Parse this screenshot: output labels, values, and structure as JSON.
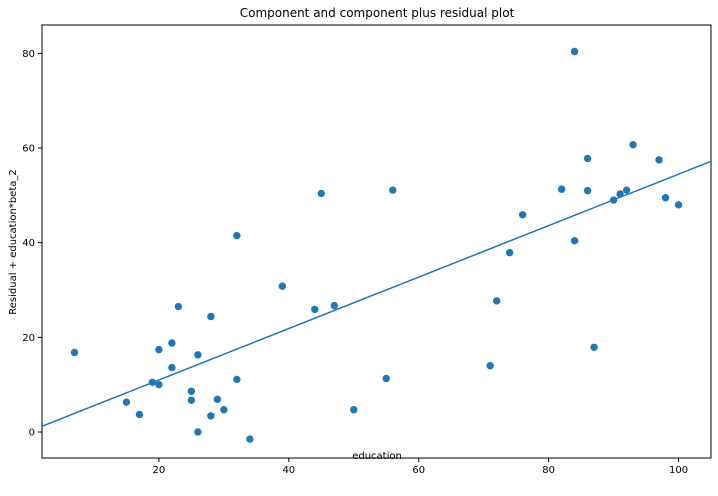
{
  "chart_data": {
    "type": "scatter",
    "title": "Component and component plus residual plot",
    "xlabel": "education",
    "ylabel": "Residual + education*beta_2",
    "xlim": [
      2,
      105
    ],
    "ylim": [
      -5.5,
      86
    ],
    "xticks": [
      20,
      40,
      60,
      80,
      100
    ],
    "yticks": [
      0,
      20,
      40,
      60,
      80
    ],
    "grid": false,
    "colors": {
      "points": "#1f77b4",
      "line": "#1f77b4"
    },
    "points": [
      {
        "x": 7,
        "y": 16.8
      },
      {
        "x": 15,
        "y": 6.3
      },
      {
        "x": 17,
        "y": 3.7
      },
      {
        "x": 19,
        "y": 10.5
      },
      {
        "x": 20,
        "y": 17.4
      },
      {
        "x": 20,
        "y": 10
      },
      {
        "x": 22,
        "y": 18.8
      },
      {
        "x": 22,
        "y": 13.6
      },
      {
        "x": 23,
        "y": 26.5
      },
      {
        "x": 25,
        "y": 8.6
      },
      {
        "x": 25,
        "y": 6.7
      },
      {
        "x": 26,
        "y": 16.3
      },
      {
        "x": 26,
        "y": 0
      },
      {
        "x": 28,
        "y": 24.4
      },
      {
        "x": 28,
        "y": 3.4
      },
      {
        "x": 29,
        "y": 6.9
      },
      {
        "x": 30,
        "y": 4.7
      },
      {
        "x": 32,
        "y": 41.5
      },
      {
        "x": 32,
        "y": 11.1
      },
      {
        "x": 34,
        "y": -1.5
      },
      {
        "x": 39,
        "y": 30.8
      },
      {
        "x": 44,
        "y": 25.9
      },
      {
        "x": 45,
        "y": 50.4
      },
      {
        "x": 47,
        "y": 26.7
      },
      {
        "x": 50,
        "y": 4.7
      },
      {
        "x": 55,
        "y": 11.3
      },
      {
        "x": 56,
        "y": 51.1
      },
      {
        "x": 71,
        "y": 14
      },
      {
        "x": 72,
        "y": 27.7
      },
      {
        "x": 74,
        "y": 37.9
      },
      {
        "x": 76,
        "y": 45.9
      },
      {
        "x": 82,
        "y": 51.3
      },
      {
        "x": 84,
        "y": 80.4
      },
      {
        "x": 84,
        "y": 40.4
      },
      {
        "x": 86,
        "y": 57.8
      },
      {
        "x": 86,
        "y": 51
      },
      {
        "x": 87,
        "y": 17.9
      },
      {
        "x": 90,
        "y": 49
      },
      {
        "x": 91,
        "y": 50.3
      },
      {
        "x": 92,
        "y": 51.1
      },
      {
        "x": 93,
        "y": 60.7
      },
      {
        "x": 97,
        "y": 57.5
      },
      {
        "x": 98,
        "y": 49.5
      },
      {
        "x": 100,
        "y": 48
      }
    ],
    "fit_line": {
      "x": [
        2,
        105
      ],
      "y": [
        1.2,
        57.2
      ]
    }
  }
}
